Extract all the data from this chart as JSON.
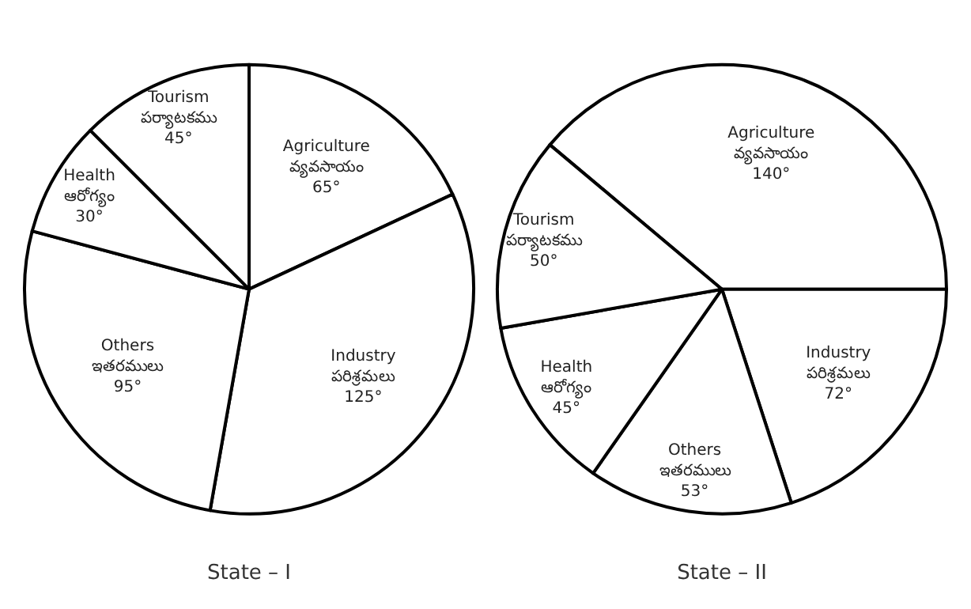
{
  "chart_data": [
    {
      "type": "pie",
      "title": "State – I",
      "categories": [
        "Agriculture\nవ్యవసాయం",
        "Industry\nపరిశ్రమలు",
        "Others\nఇతరములు",
        "Health\nఆరోగ్యం",
        "Tourism\nపర్యాటకము"
      ],
      "values": [
        65,
        125,
        95,
        30,
        45
      ],
      "value_labels": [
        "65°",
        "125°",
        "95°",
        "30°",
        "45°"
      ],
      "colors": [
        "#ffffff",
        "#ffffff",
        "#ffffff",
        "#ffffff",
        "#ffffff"
      ]
    },
    {
      "type": "pie",
      "title": "State – II",
      "categories": [
        "Agriculture\nవ్యవసాయం",
        "Industry\nపరిశ్రమలు",
        "Others\nఇతరములు",
        "Health\nఆరోగ్యం",
        "Tourism\nపర్యాటకము"
      ],
      "values": [
        140,
        72,
        53,
        45,
        50
      ],
      "value_labels": [
        "140°",
        "72°",
        "53°",
        "45°",
        "50°"
      ],
      "colors": [
        "#ffffff",
        "#ffffff",
        "#ffffff",
        "#ffffff",
        "#ffffff"
      ]
    }
  ]
}
